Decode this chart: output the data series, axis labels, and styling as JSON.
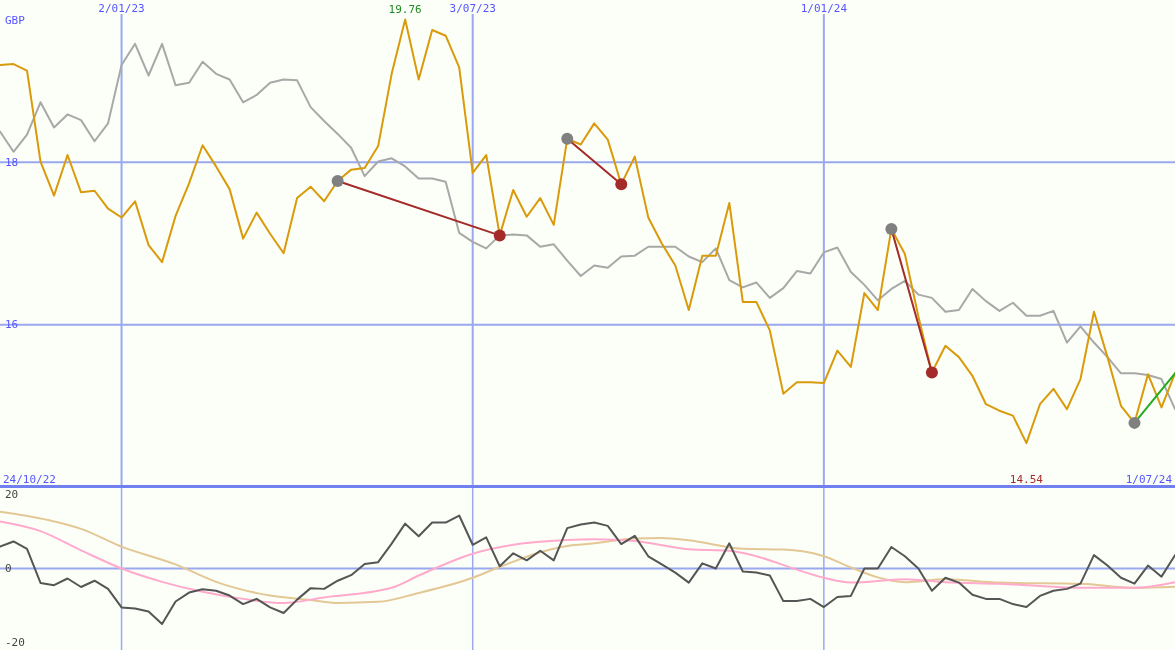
{
  "chart_data": [
    {
      "type": "line",
      "ylabel": "GBP",
      "x": [
        "2022-10-31",
        "2022-11-07",
        "2022-11-14",
        "2022-11-21",
        "2022-11-28",
        "2022-12-05",
        "2022-12-12",
        "2022-12-19",
        "2022-12-26",
        "2023-01-02",
        "2023-01-09",
        "2023-01-16",
        "2023-01-23",
        "2023-01-30",
        "2023-02-06",
        "2023-02-13",
        "2023-02-20",
        "2023-02-27",
        "2023-03-06",
        "2023-03-13",
        "2023-03-20",
        "2023-03-27",
        "2023-04-03",
        "2023-04-10",
        "2023-04-17",
        "2023-04-24",
        "2023-05-01",
        "2023-05-08",
        "2023-05-15",
        "2023-05-22",
        "2023-05-29",
        "2023-06-05",
        "2023-06-12",
        "2023-06-19",
        "2023-06-26",
        "2023-07-03",
        "2023-07-10",
        "2023-07-17",
        "2023-07-24",
        "2023-07-31",
        "2023-08-07",
        "2023-08-14",
        "2023-08-21",
        "2023-08-28",
        "2023-09-04",
        "2023-09-11",
        "2023-09-18",
        "2023-09-25",
        "2023-10-02",
        "2023-10-09",
        "2023-10-16",
        "2023-10-23",
        "2023-10-30",
        "2023-11-06",
        "2023-11-13",
        "2023-11-20",
        "2023-11-27",
        "2023-12-04",
        "2023-12-11",
        "2023-12-18",
        "2023-12-25",
        "2024-01-01",
        "2024-01-08",
        "2024-01-15",
        "2024-01-22",
        "2024-01-29",
        "2024-02-05",
        "2024-02-12",
        "2024-02-19",
        "2024-02-26",
        "2024-03-04",
        "2024-03-11",
        "2024-03-18",
        "2024-03-25",
        "2024-04-01",
        "2024-04-08",
        "2024-04-15",
        "2024-04-22",
        "2024-04-29",
        "2024-05-06",
        "2024-05-13",
        "2024-05-20",
        "2024-05-27",
        "2024-06-03",
        "2024-06-10",
        "2024-06-17",
        "2024-06-24",
        "2024-07-01"
      ],
      "series": [
        {
          "color": "#a8a8a8",
          "values": [
            18.38,
            18.13,
            18.34,
            18.74,
            18.43,
            18.59,
            18.52,
            18.26,
            18.48,
            19.2,
            19.46,
            19.07,
            19.46,
            18.95,
            18.98,
            19.24,
            19.09,
            19.02,
            18.74,
            18.83,
            18.98,
            19.02,
            19.01,
            18.68,
            18.51,
            18.35,
            18.18,
            17.83,
            18.01,
            18.05,
            17.95,
            17.8,
            17.8,
            17.76,
            17.13,
            17.02,
            16.94,
            17.1,
            17.11,
            17.1,
            16.96,
            16.99,
            16.79,
            16.6,
            16.73,
            16.7,
            16.84,
            16.85,
            16.96,
            16.96,
            16.96,
            16.84,
            16.77,
            16.94,
            16.55,
            16.46,
            16.52,
            16.33,
            16.45,
            16.66,
            16.63,
            16.89,
            16.95,
            16.65,
            16.49,
            16.3,
            16.44,
            16.54,
            16.37,
            16.33,
            16.16,
            16.18,
            16.44,
            16.29,
            16.17,
            16.27,
            16.11,
            16.11,
            16.17,
            15.78,
            15.98,
            15.78,
            15.6,
            15.4,
            15.4,
            15.38,
            15.33,
            14.96
          ]
        },
        {
          "color": "#d99a0b",
          "values": [
            19.2,
            19.21,
            19.13,
            18.01,
            17.59,
            18.09,
            17.63,
            17.65,
            17.43,
            17.32,
            17.52,
            16.98,
            16.77,
            17.34,
            17.74,
            18.21,
            17.95,
            17.67,
            17.06,
            17.38,
            17.12,
            16.88,
            17.56,
            17.7,
            17.52,
            17.77,
            17.91,
            17.93,
            18.2,
            19.09,
            19.76,
            19.02,
            19.63,
            19.56,
            19.17,
            17.87,
            18.09,
            17.1,
            17.66,
            17.33,
            17.56,
            17.23,
            18.29,
            18.22,
            18.48,
            18.28,
            17.73,
            18.07,
            17.32,
            17,
            16.73,
            16.18,
            16.85,
            16.85,
            17.5,
            16.28,
            16.28,
            15.93,
            15.15,
            15.29,
            15.29,
            15.28,
            15.68,
            15.48,
            16.39,
            16.18,
            17.18,
            16.87,
            16.1,
            15.41,
            15.74,
            15.6,
            15.37,
            15.02,
            14.94,
            14.88,
            14.54,
            15.02,
            15.21,
            14.96,
            15.33,
            16.16,
            15.6,
            15,
            14.79,
            15.39,
            14.98,
            15.4
          ]
        },
        {
          "color": "#a52a2a",
          "x": [
            "2023-04-24",
            "2023-07-17"
          ],
          "values": [
            17.77,
            17.1
          ]
        },
        {
          "color": "#a52a2a",
          "x": [
            "2023-08-21",
            "2023-09-18"
          ],
          "values": [
            18.29,
            17.73
          ]
        },
        {
          "color": "#a52a2a",
          "x": [
            "2024-02-05",
            "2024-02-26"
          ],
          "values": [
            17.18,
            15.41
          ]
        },
        {
          "color": "#22aa22",
          "x": [
            "2024-06-10",
            "2024-07-01"
          ],
          "values": [
            14.79,
            15.4
          ]
        },
        {
          "type": "scatter",
          "color": "#808080",
          "x": [
            "2023-04-24",
            "2023-08-21",
            "2024-02-05",
            "2024-06-10"
          ],
          "values": [
            17.77,
            18.29,
            17.18,
            14.79
          ]
        },
        {
          "type": "scatter",
          "color": "#a52a2a",
          "x": [
            "2023-07-17",
            "2023-09-18",
            "2024-02-26"
          ],
          "values": [
            17.1,
            17.73,
            15.41
          ]
        }
      ],
      "xlim": [
        "2022-10-31",
        "2024-07-01"
      ],
      "xticks": [
        {
          "value": "2023-01-02",
          "label": "2/01/23"
        },
        {
          "value": "2023-07-03",
          "label": "3/07/23"
        },
        {
          "value": "2024-01-01",
          "label": "1/01/24"
        }
      ],
      "ylim": [
        14,
        20
      ],
      "yticks": [
        16,
        18
      ],
      "grid": true,
      "annotations": [
        {
          "text": "19.76",
          "x": "2023-05-29",
          "y": 19.76
        },
        {
          "text": "14.54",
          "x": "2024-04-15",
          "y": 14.54
        },
        "24/10/22",
        "1/07/24"
      ]
    },
    {
      "type": "line",
      "tick_labels": "y",
      "x": [
        "2022-10-31",
        "2022-11-07",
        "2022-11-14",
        "2022-11-21",
        "2022-11-28",
        "2022-12-05",
        "2022-12-12",
        "2022-12-19",
        "2022-12-26",
        "2023-01-02",
        "2023-01-09",
        "2023-01-16",
        "2023-01-23",
        "2023-01-30",
        "2023-02-06",
        "2023-02-13",
        "2023-02-20",
        "2023-02-27",
        "2023-03-06",
        "2023-03-13",
        "2023-03-20",
        "2023-03-27",
        "2023-04-03",
        "2023-04-10",
        "2023-04-17",
        "2023-04-24",
        "2023-05-01",
        "2023-05-08",
        "2023-05-15",
        "2023-05-22",
        "2023-05-29",
        "2023-06-05",
        "2023-06-12",
        "2023-06-19",
        "2023-06-26",
        "2023-07-03",
        "2023-07-10",
        "2023-07-17",
        "2023-07-24",
        "2023-07-31",
        "2023-08-07",
        "2023-08-14",
        "2023-08-21",
        "2023-08-28",
        "2023-09-04",
        "2023-09-11",
        "2023-09-18",
        "2023-09-25",
        "2023-10-02",
        "2023-10-09",
        "2023-10-16",
        "2023-10-23",
        "2023-10-30",
        "2023-11-06",
        "2023-11-13",
        "2023-11-20",
        "2023-11-27",
        "2023-12-04",
        "2023-12-11",
        "2023-12-18",
        "2023-12-25",
        "2024-01-01",
        "2024-01-08",
        "2024-01-15",
        "2024-01-22",
        "2024-01-29",
        "2024-02-05",
        "2024-02-12",
        "2024-02-19",
        "2024-02-26",
        "2024-03-04",
        "2024-03-11",
        "2024-03-18",
        "2024-03-25",
        "2024-04-01",
        "2024-04-08",
        "2024-04-15",
        "2024-04-22",
        "2024-04-29",
        "2024-05-06",
        "2024-05-13",
        "2024-05-20",
        "2024-05-27",
        "2024-06-03",
        "2024-06-10",
        "2024-06-17",
        "2024-06-24",
        "2024-07-01"
      ],
      "series": [
        {
          "color": "#e3c795",
          "x": [
            "2022-10-31",
            "2022-11-28",
            "2022-12-12",
            "2023-01-02",
            "2023-01-30",
            "2023-02-20",
            "2023-03-20",
            "2023-04-10",
            "2023-04-24",
            "2023-05-15",
            "2023-06-05",
            "2023-07-03",
            "2023-07-17",
            "2023-08-07",
            "2023-08-21",
            "2023-09-04",
            "2023-09-25",
            "2023-10-09",
            "2023-10-23",
            "2023-11-20",
            "2023-12-11",
            "2024-01-01",
            "2024-01-15",
            "2024-01-29",
            "2024-02-12",
            "2024-03-04",
            "2024-04-01",
            "2024-05-13",
            "2024-06-10",
            "2024-07-01"
          ],
          "values": [
            15.3,
            12.7,
            10.7,
            5.9,
            1.1,
            -3.6,
            -7.3,
            -8.5,
            -9.3,
            -9,
            -6.6,
            -2.5,
            0.4,
            4.4,
            6.1,
            6.8,
            8.1,
            8.2,
            7.6,
            5.3,
            5.1,
            3.3,
            0.3,
            -2.4,
            -3.7,
            -2.9,
            -3.8,
            -4.1,
            -5.2,
            -4.9
          ]
        },
        {
          "color": "#ffaacc",
          "x": [
            "2022-10-31",
            "2022-11-21",
            "2022-12-12",
            "2023-01-02",
            "2023-01-23",
            "2023-02-13",
            "2023-03-06",
            "2023-03-27",
            "2023-04-17",
            "2023-05-22",
            "2023-06-05",
            "2023-07-03",
            "2023-07-24",
            "2023-08-21",
            "2023-09-04",
            "2023-09-25",
            "2023-10-23",
            "2023-11-13",
            "2023-11-27",
            "2023-12-18",
            "2024-01-01",
            "2024-01-15",
            "2024-02-12",
            "2024-03-04",
            "2024-04-01",
            "2024-05-13",
            "2024-06-10",
            "2024-07-01"
          ],
          "values": [
            12.7,
            10.1,
            4.9,
            0,
            -3.6,
            -6.3,
            -8.2,
            -9.3,
            -7.8,
            -5.2,
            -1.9,
            4,
            6.4,
            7.7,
            7.9,
            7.4,
            5.2,
            4.8,
            3.3,
            -0.3,
            -2.5,
            -3.8,
            -2.9,
            -3.7,
            -4.1,
            -5.2,
            -5.2,
            -3.7
          ]
        },
        {
          "color": "#555555",
          "values": [
            5.9,
            7.3,
            5.3,
            -3.9,
            -4.5,
            -2.7,
            -5,
            -3.3,
            -5.5,
            -10.5,
            -10.8,
            -11.6,
            -15,
            -8.9,
            -6.5,
            -5.6,
            -6,
            -7.3,
            -9.6,
            -8.2,
            -10.5,
            -12,
            -8.4,
            -5.3,
            -5.5,
            -3.3,
            -1.8,
            1.2,
            1.7,
            6.7,
            12.1,
            8.7,
            12.4,
            12.4,
            14.3,
            6.4,
            8.4,
            0.6,
            4.1,
            2.2,
            4.8,
            2.2,
            10.9,
            11.9,
            12.4,
            11.5,
            6.6,
            8.8,
            3.3,
            1.1,
            -1.1,
            -3.8,
            1.4,
            0,
            6.8,
            -0.8,
            -1.1,
            -1.9,
            -8.8,
            -8.8,
            -8.2,
            -10.4,
            -7.7,
            -7.4,
            0,
            0,
            5.8,
            3.3,
            0,
            -6,
            -2.5,
            -3.8,
            -7.1,
            -8.2,
            -8.2,
            -9.6,
            -10.4,
            -7.4,
            -6,
            -5.5,
            -4.1,
            3.6,
            0.8,
            -2.5,
            -4.1,
            0.8,
            -2.2,
            3.6
          ]
        }
      ],
      "xlim": [
        "2022-10-31",
        "2024-07-01"
      ],
      "xticks": [
        {
          "value": "2023-01-02",
          "label": null
        },
        {
          "value": "2023-07-03",
          "label": null
        },
        {
          "value": "2024-01-01",
          "label": null
        }
      ],
      "ylim": [
        -22,
        22
      ],
      "yticks": [
        -20,
        0,
        20
      ],
      "grid": "x",
      "ref_lines": [
        {
          "axis": "y",
          "value": 0
        }
      ]
    }
  ]
}
